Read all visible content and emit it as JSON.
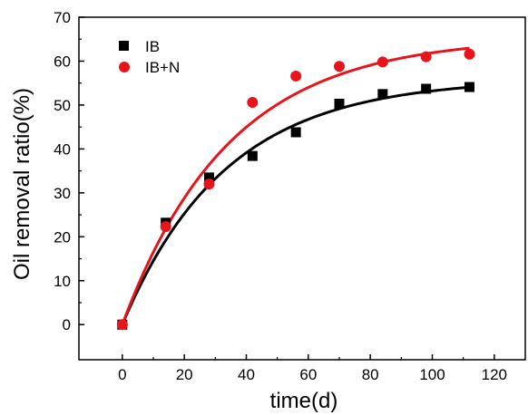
{
  "chart_data": {
    "type": "scatter",
    "xlabel": "time(d)",
    "ylabel": "Oil removal ratio(%)",
    "xlim": [
      -14,
      130
    ],
    "ylim": [
      -8,
      70
    ],
    "xticks": [
      0,
      20,
      40,
      60,
      80,
      100,
      120
    ],
    "yticks": [
      0,
      10,
      20,
      30,
      40,
      50,
      60,
      70
    ],
    "grid": false,
    "legend_position": "top-left",
    "series": [
      {
        "name": "IB",
        "marker": "square",
        "color": "#000000",
        "x": [
          0,
          14,
          28,
          42,
          56,
          70,
          84,
          98,
          112
        ],
        "y": [
          0,
          23.2,
          33.5,
          38.4,
          43.8,
          50.3,
          52.5,
          53.7,
          54.1
        ],
        "fit": {
          "type": "exponential-saturation",
          "plateau": 56.0,
          "rate": 0.03
        }
      },
      {
        "name": "IB+N",
        "marker": "circle",
        "color": "#e8141b",
        "x": [
          0,
          14,
          28,
          42,
          56,
          70,
          84,
          98,
          112
        ],
        "y": [
          0,
          22.3,
          32.0,
          50.6,
          56.6,
          58.8,
          59.8,
          61.0,
          61.6
        ],
        "fit": {
          "type": "exponential-saturation",
          "plateau": 65.5,
          "rate": 0.029
        }
      }
    ]
  }
}
